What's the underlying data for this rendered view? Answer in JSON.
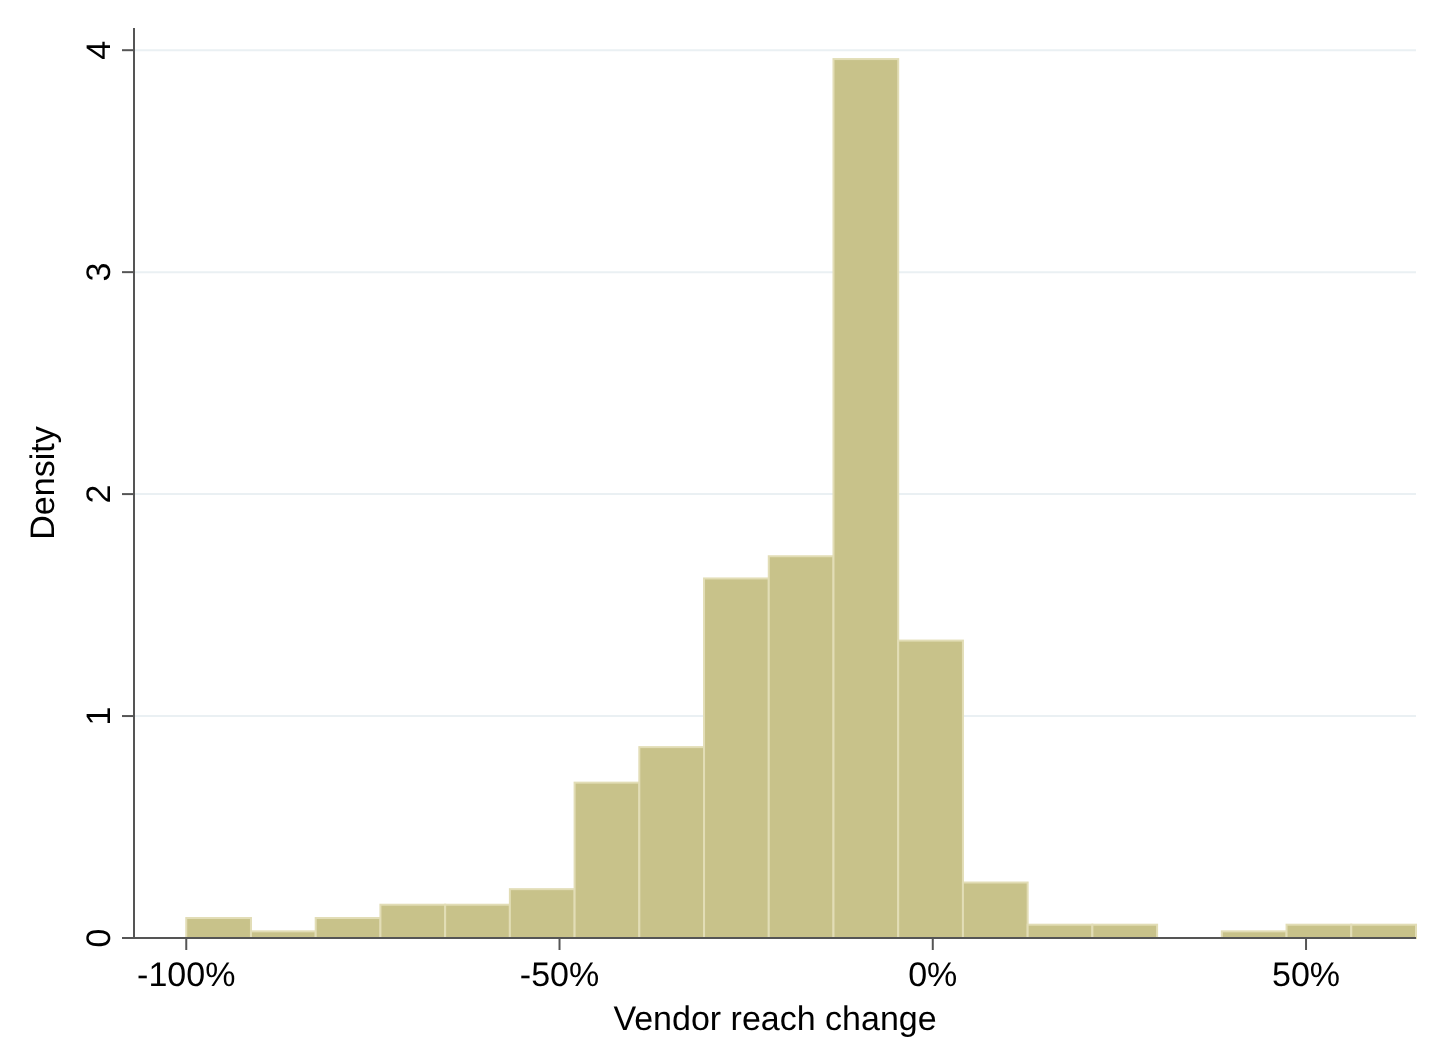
{
  "chart_data": {
    "type": "histogram",
    "xlabel": "Vendor reach change",
    "ylabel": "Density",
    "bins": [
      -100,
      -91.33,
      -82.66,
      -73.99,
      -65.32,
      -56.65,
      -47.98,
      -39.31,
      -30.64,
      -21.97,
      -13.3,
      -4.63,
      4.04,
      12.71,
      21.38,
      30.05,
      38.72,
      47.39,
      56.06,
      64.73
    ],
    "values": [
      0.09,
      0.03,
      0.09,
      0.15,
      0.15,
      0.22,
      0.7,
      0.86,
      1.62,
      1.72,
      3.96,
      1.34,
      0.25,
      0.06,
      0.06,
      0,
      0.03,
      0.06,
      0.06
    ],
    "color": "#c8c28a",
    "xlim": [
      -107,
      64.73
    ],
    "xticks": [
      {
        "value": -100,
        "label": "-100%"
      },
      {
        "value": -50,
        "label": "-50%"
      },
      {
        "value": 0,
        "label": "0%"
      },
      {
        "value": 50,
        "label": "50%"
      }
    ],
    "ylim": [
      0,
      4.1
    ],
    "yticks": [
      0,
      1,
      2,
      3,
      4
    ],
    "grid": "y"
  }
}
